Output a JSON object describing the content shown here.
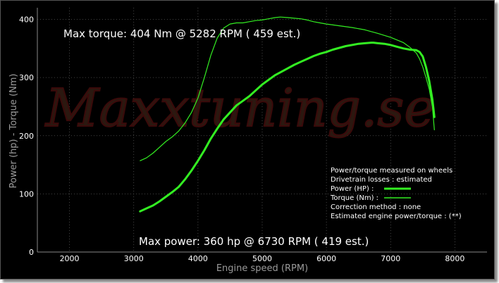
{
  "chart_data": {
    "type": "line",
    "xlabel": "Engine speed (RPM)",
    "ylabel": "Power (hp) - Torque (Nm)",
    "xlim": [
      1500,
      8500
    ],
    "ylim": [
      0,
      420
    ],
    "x_ticks": [
      2000,
      3000,
      4000,
      5000,
      6000,
      7000,
      8000
    ],
    "y_ticks": [
      0,
      100,
      200,
      300,
      400
    ],
    "grid": true,
    "watermark": "Maxxtuning.se",
    "annotations": {
      "max_torque": "Max torque:  404 Nm @  5282 RPM ( 459 est.)",
      "max_power": "Max power:   360 hp @  6730 RPM ( 419 est.)"
    },
    "legend": {
      "placement": "bottom-right",
      "lines": [
        "Power/torque measured on wheels",
        "Drivetrain losses : estimated",
        "Power (HP)   :",
        "Torque (Nm) :",
        "Correction method : none",
        "Estimated engine power/torque : (**)"
      ]
    },
    "colors": {
      "series": "#33ee22",
      "background": "#000000",
      "grid": "#555555"
    },
    "series": [
      {
        "name": "Power (HP)",
        "x": [
          3100,
          3200,
          3300,
          3400,
          3500,
          3600,
          3700,
          3800,
          3900,
          4000,
          4100,
          4200,
          4300,
          4400,
          4500,
          4600,
          4700,
          4800,
          4900,
          5000,
          5100,
          5200,
          5300,
          5400,
          5500,
          5600,
          5700,
          5800,
          5900,
          6000,
          6100,
          6200,
          6300,
          6400,
          6500,
          6600,
          6700,
          6730,
          6800,
          6900,
          7000,
          7100,
          7200,
          7300,
          7400,
          7450,
          7500,
          7550,
          7600,
          7650,
          7680
        ],
        "values": [
          70,
          75,
          80,
          87,
          95,
          103,
          112,
          125,
          140,
          157,
          175,
          195,
          212,
          228,
          240,
          252,
          260,
          268,
          278,
          288,
          296,
          304,
          310,
          316,
          322,
          327,
          332,
          337,
          341,
          344,
          348,
          351,
          354,
          356,
          358,
          359,
          360,
          360,
          359,
          358,
          356,
          353,
          350,
          348,
          347,
          344,
          336,
          318,
          294,
          262,
          232
        ]
      },
      {
        "name": "Torque (Nm)",
        "x": [
          3100,
          3200,
          3300,
          3400,
          3500,
          3600,
          3700,
          3800,
          3900,
          4000,
          4100,
          4200,
          4300,
          4400,
          4500,
          4600,
          4700,
          4800,
          4900,
          5000,
          5100,
          5200,
          5282,
          5400,
          5500,
          5600,
          5700,
          5800,
          5900,
          6000,
          6200,
          6400,
          6600,
          6800,
          7000,
          7200,
          7300,
          7400,
          7450,
          7500,
          7550,
          7600,
          7650,
          7680
        ],
        "values": [
          157,
          162,
          170,
          180,
          190,
          198,
          208,
          222,
          240,
          265,
          300,
          338,
          368,
          385,
          392,
          394,
          394,
          396,
          398,
          399,
          401,
          403,
          404,
          403,
          402,
          401,
          399,
          396,
          394,
          392,
          389,
          386,
          382,
          376,
          369,
          360,
          352,
          342,
          332,
          318,
          300,
          280,
          250,
          210
        ]
      }
    ]
  }
}
